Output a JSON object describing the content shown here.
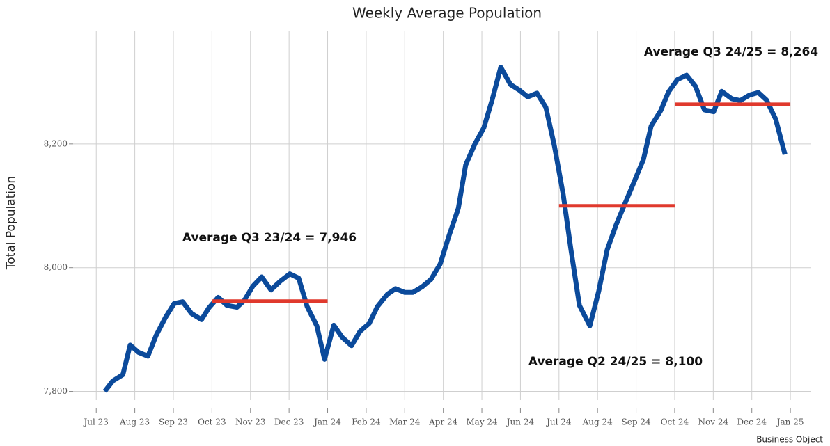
{
  "chart_data": {
    "type": "line",
    "title": "Weekly Average Population",
    "y_label": "Total Population",
    "footnote": "Business Object",
    "xlim": [
      -0.6,
      18.54
    ],
    "xticks": [
      {
        "value": 0,
        "label": "Jul 23"
      },
      {
        "value": 1,
        "label": "Aug 23"
      },
      {
        "value": 2,
        "label": "Sep 23"
      },
      {
        "value": 3,
        "label": "Oct 23"
      },
      {
        "value": 4,
        "label": "Nov 23"
      },
      {
        "value": 5,
        "label": "Dec 23"
      },
      {
        "value": 6,
        "label": "Jan 24"
      },
      {
        "value": 7,
        "label": "Feb 24"
      },
      {
        "value": 8,
        "label": "Mar 24"
      },
      {
        "value": 9,
        "label": "Apr 24"
      },
      {
        "value": 10,
        "label": "May 24"
      },
      {
        "value": 11,
        "label": "Jun 24"
      },
      {
        "value": 12,
        "label": "Jul 24"
      },
      {
        "value": 13,
        "label": "Aug 24"
      },
      {
        "value": 14,
        "label": "Sep 24"
      },
      {
        "value": 15,
        "label": "Oct 24"
      },
      {
        "value": 16,
        "label": "Nov 24"
      },
      {
        "value": 17,
        "label": "Dec 24"
      },
      {
        "value": 18,
        "label": "Jan 25"
      }
    ],
    "ylim": [
      7786,
      8382
    ],
    "yticks": [
      {
        "value": 7800,
        "label": "7,800"
      },
      {
        "value": 8000,
        "label": "8,000"
      },
      {
        "value": 8200,
        "label": "8,200"
      }
    ],
    "grid": true,
    "series": [
      {
        "color": "#0b4a9b",
        "x": [
          0.22,
          0.43,
          0.69,
          0.88,
          1.1,
          1.34,
          1.55,
          1.79,
          2.02,
          2.24,
          2.47,
          2.73,
          2.92,
          3.16,
          3.39,
          3.65,
          3.84,
          4.06,
          4.29,
          4.53,
          4.77,
          5.02,
          5.25,
          5.47,
          5.72,
          5.92,
          6.16,
          6.37,
          6.62,
          6.84,
          7.08,
          7.29,
          7.55,
          7.76,
          8.0,
          8.21,
          8.45,
          8.68,
          8.92,
          9.15,
          9.39,
          9.58,
          9.82,
          10.05,
          10.27,
          10.49,
          10.74,
          10.97,
          11.19,
          11.43,
          11.66,
          11.88,
          12.11,
          12.31,
          12.53,
          12.8,
          13.03,
          13.25,
          13.48,
          13.72,
          13.95,
          14.19,
          14.39,
          14.64,
          14.84,
          15.07,
          15.31,
          15.54,
          15.77,
          16.01,
          16.22,
          16.48,
          16.7,
          16.94,
          17.17,
          17.38,
          17.62,
          17.86
        ],
        "values": [
          7800,
          7817,
          7827,
          7875,
          7863,
          7857,
          7890,
          7919,
          7942,
          7945,
          7926,
          7916,
          7935,
          7952,
          7939,
          7936,
          7947,
          7970,
          7985,
          7964,
          7978,
          7990,
          7983,
          7937,
          7906,
          7852,
          7907,
          7888,
          7874,
          7897,
          7910,
          7937,
          7957,
          7966,
          7960,
          7960,
          7969,
          7981,
          8006,
          8052,
          8096,
          8166,
          8200,
          8226,
          8272,
          8324,
          8296,
          8287,
          8276,
          8282,
          8259,
          8197,
          8118,
          8029,
          7939,
          7906,
          7962,
          8029,
          8069,
          8105,
          8139,
          8175,
          8229,
          8254,
          8284,
          8304,
          8311,
          8293,
          8255,
          8252,
          8285,
          8273,
          8270,
          8279,
          8283,
          8271,
          8240,
          8183
        ]
      }
    ],
    "reference_lines": [
      {
        "label": "Average Q3 23/24 = 7,946",
        "value": 7946,
        "x": [
          3,
          6
        ],
        "color": "#e0392d"
      },
      {
        "label": "Average Q2 24/25 = 8,100",
        "value": 8100,
        "x": [
          12,
          15
        ],
        "color": "#e0392d"
      },
      {
        "label": "Average Q3 24/25 = 8,264",
        "value": 8264,
        "x": [
          15,
          18
        ],
        "color": "#e0392d"
      }
    ]
  }
}
